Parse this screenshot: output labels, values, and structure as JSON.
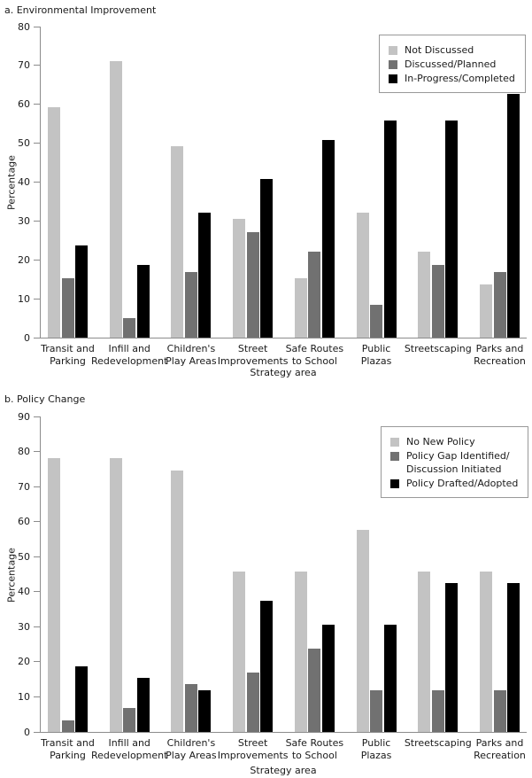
{
  "page": {
    "background": "#ffffff",
    "axis_color": "#8c8c8c",
    "text_color": "#1a1a1a"
  },
  "chart_data": [
    {
      "type": "bar",
      "title": "a. Environmental Improvement",
      "xlabel": "Strategy area",
      "ylabel": "Percentage",
      "ylim": [
        0,
        80
      ],
      "yticks": [
        0,
        10,
        20,
        30,
        40,
        50,
        60,
        70,
        80
      ],
      "grid": false,
      "legend_position": "top-right",
      "colors": [
        "#c3c3c3",
        "#717171",
        "#000000"
      ],
      "categories": [
        [
          "Transit and",
          "Parking"
        ],
        [
          "Infill and",
          "Redevelopment"
        ],
        [
          "Children's",
          "Play Areas"
        ],
        [
          "Street",
          "Improvements"
        ],
        [
          "Safe Routes",
          "to School"
        ],
        [
          "Public",
          "Plazas"
        ],
        [
          "Streetscaping"
        ],
        [
          "Parks and",
          "Recreation"
        ]
      ],
      "series": [
        {
          "name": "Not Discussed",
          "name_lines": [
            "Not Discussed"
          ],
          "values": [
            59.3,
            71.2,
            49.2,
            30.5,
            15.3,
            32.2,
            22.0,
            13.6
          ]
        },
        {
          "name": "Discussed/Planned",
          "name_lines": [
            "Discussed/Planned"
          ],
          "values": [
            15.3,
            5.1,
            16.9,
            27.1,
            22.0,
            8.5,
            18.6,
            16.9
          ]
        },
        {
          "name": "In-Progress/Completed",
          "name_lines": [
            "In-Progress/Completed"
          ],
          "values": [
            23.7,
            18.6,
            32.2,
            40.7,
            50.8,
            55.9,
            55.9,
            62.7
          ]
        }
      ]
    },
    {
      "type": "bar",
      "title": "b. Policy Change",
      "xlabel": "Strategy area",
      "ylabel": "Percentage",
      "ylim": [
        0,
        90
      ],
      "yticks": [
        0,
        10,
        20,
        30,
        40,
        50,
        60,
        70,
        80,
        90
      ],
      "grid": false,
      "legend_position": "top-right",
      "colors": [
        "#c3c3c3",
        "#717171",
        "#000000"
      ],
      "categories": [
        [
          "Transit and",
          "Parking"
        ],
        [
          "Infill and",
          "Redevelopment"
        ],
        [
          "Children's",
          "Play Areas"
        ],
        [
          "Street",
          "Improvements"
        ],
        [
          "Safe Routes",
          "to School"
        ],
        [
          "Public",
          "Plazas"
        ],
        [
          "Streetscaping"
        ],
        [
          "Parks and",
          "Recreation"
        ]
      ],
      "series": [
        {
          "name": "No New Policy",
          "name_lines": [
            "No New Policy"
          ],
          "values": [
            78.0,
            78.0,
            74.6,
            45.8,
            45.8,
            57.6,
            45.8,
            45.8
          ]
        },
        {
          "name": "Policy Gap Identified/Discussion Initiated",
          "name_lines": [
            "Policy Gap Identified/",
            "Discussion Initiated"
          ],
          "values": [
            3.4,
            6.8,
            13.6,
            16.9,
            23.7,
            11.9,
            11.9,
            11.9
          ]
        },
        {
          "name": "Policy Drafted/Adopted",
          "name_lines": [
            "Policy Drafted/Adopted"
          ],
          "values": [
            18.6,
            15.3,
            11.9,
            37.3,
            30.5,
            30.5,
            42.4,
            42.4
          ]
        }
      ]
    }
  ]
}
